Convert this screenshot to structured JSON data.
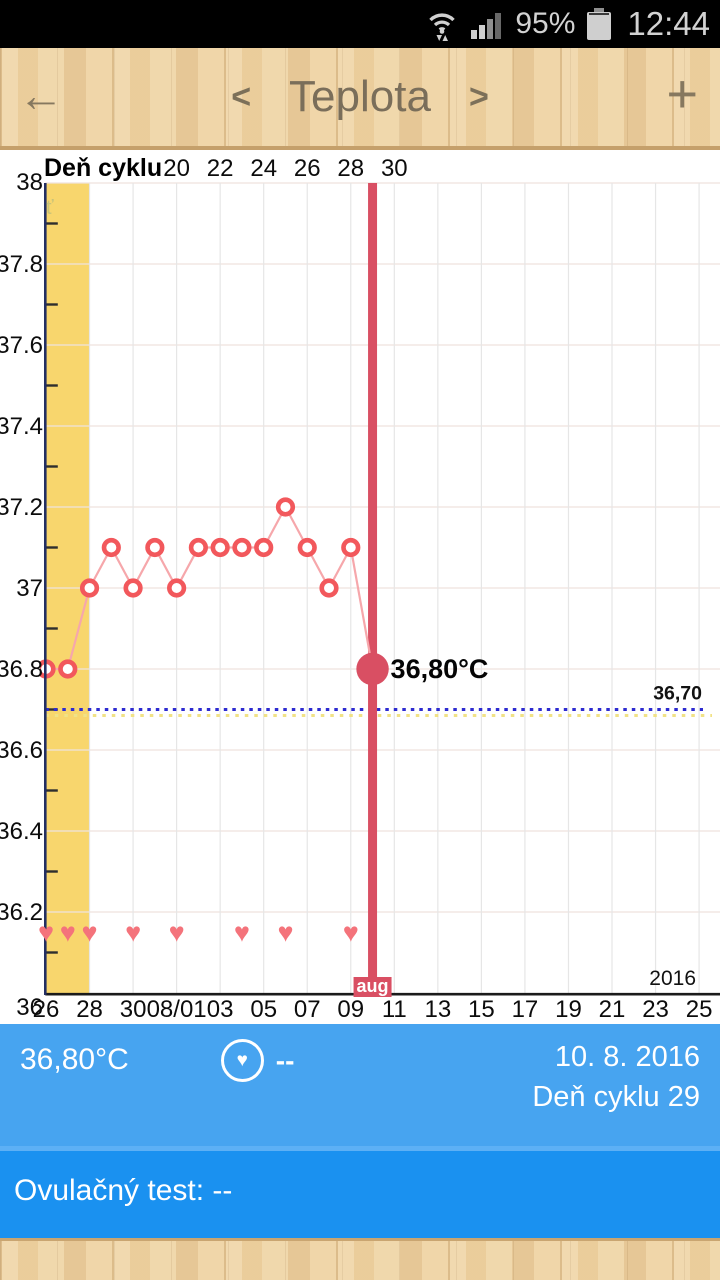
{
  "status_bar": {
    "battery_level": "95%",
    "time": "12:44",
    "signal_bar_colors": [
      "#cfcfcf",
      "#cfcfcf",
      "#8f8f8f",
      "#686868"
    ],
    "signal_bar_heights": [
      9,
      14,
      20,
      26
    ]
  },
  "header": {
    "back_arrow": "←",
    "prev_chevron": "<",
    "title": "Teplota",
    "next_chevron": ">",
    "add_button": "+"
  },
  "chart_data": {
    "type": "line",
    "title": "Teplota",
    "x_axis": {
      "top_title": "Deň cyklu",
      "top_ticks": [
        {
          "label": "20",
          "day": 6
        },
        {
          "label": "22",
          "day": 8
        },
        {
          "label": "24",
          "day": 10
        },
        {
          "label": "26",
          "day": 12
        },
        {
          "label": "28",
          "day": 14
        },
        {
          "label": "30",
          "day": 16
        }
      ],
      "bottom_ticks": [
        {
          "label": "26",
          "day": 0
        },
        {
          "label": "28",
          "day": 2
        },
        {
          "label": "30",
          "day": 4
        },
        {
          "label": "08/01",
          "day": 6
        },
        {
          "label": "03",
          "day": 8
        },
        {
          "label": "05",
          "day": 10
        },
        {
          "label": "07",
          "day": 12
        },
        {
          "label": "09",
          "day": 14
        },
        {
          "label": "11",
          "day": 16
        },
        {
          "label": "13",
          "day": 18
        },
        {
          "label": "15",
          "day": 20
        },
        {
          "label": "17",
          "day": 22
        },
        {
          "label": "19",
          "day": 24
        },
        {
          "label": "21",
          "day": 26
        },
        {
          "label": "23",
          "day": 28
        },
        {
          "label": "25",
          "day": 30
        }
      ],
      "month_marker": {
        "label": "aug",
        "day": 15
      },
      "year_label": "2016"
    },
    "y_axis": {
      "min": 36,
      "max": 38,
      "unit": "°C",
      "tick_labels": [
        {
          "label": "38",
          "value": 38
        },
        {
          "label": "37.8",
          "value": 37.8
        },
        {
          "label": "37.6",
          "value": 37.6
        },
        {
          "label": "37.4",
          "value": 37.4
        },
        {
          "label": "37.2",
          "value": 37.2
        },
        {
          "label": "37",
          "value": 37
        },
        {
          "label": "36.8",
          "value": 36.8
        },
        {
          "label": "36.6",
          "value": 36.6
        },
        {
          "label": "36.4",
          "value": 36.4
        },
        {
          "label": "36.2",
          "value": 36.2
        },
        {
          "label": "36",
          "value": 36
        }
      ]
    },
    "series": [
      {
        "name": "basal-temperature",
        "unit": "°C",
        "points": [
          {
            "day": 0,
            "value": 36.8
          },
          {
            "day": 1,
            "value": 36.8
          },
          {
            "day": 2,
            "value": 37.0
          },
          {
            "day": 3,
            "value": 37.1
          },
          {
            "day": 4,
            "value": 37.0
          },
          {
            "day": 5,
            "value": 37.1
          },
          {
            "day": 6,
            "value": 37.0
          },
          {
            "day": 7,
            "value": 37.1
          },
          {
            "day": 8,
            "value": 37.1
          },
          {
            "day": 9,
            "value": 37.1
          },
          {
            "day": 10,
            "value": 37.1
          },
          {
            "day": 11,
            "value": 37.2
          },
          {
            "day": 12,
            "value": 37.1
          },
          {
            "day": 13,
            "value": 37.0
          },
          {
            "day": 14,
            "value": 37.1
          },
          {
            "day": 15,
            "value": 36.8
          }
        ]
      }
    ],
    "highlight_point": {
      "day": 15,
      "value": 36.8,
      "label": "36,80°C"
    },
    "reference_line": {
      "value": 36.7,
      "label": "36,70"
    },
    "cycle_start_band": {
      "from_day": 0,
      "to_day": 2
    },
    "intimacy_hearts": {
      "days": [
        0,
        1,
        2,
        4,
        6,
        9,
        11,
        14
      ],
      "value_level": 36.15
    },
    "layout_hints": {
      "grid": true,
      "x_range_days": [
        0,
        31
      ],
      "ylim": [
        36,
        38
      ]
    },
    "colors": {
      "band": "#f8d66d",
      "axis": "#232f63",
      "series_line": "#f6a7ab",
      "marker": "#f2585c",
      "highlight": "#d94f63",
      "heart": "#f4737b",
      "reference": "#2d2bd0",
      "reference_secondary": "#f1e286"
    }
  },
  "info_panel": {
    "temperature": "36,80°C",
    "heart_value": "--",
    "date": "10. 8. 2016",
    "cycle_day": "Deň cyklu 29",
    "ovulation_test": "Ovulačný test: --"
  }
}
